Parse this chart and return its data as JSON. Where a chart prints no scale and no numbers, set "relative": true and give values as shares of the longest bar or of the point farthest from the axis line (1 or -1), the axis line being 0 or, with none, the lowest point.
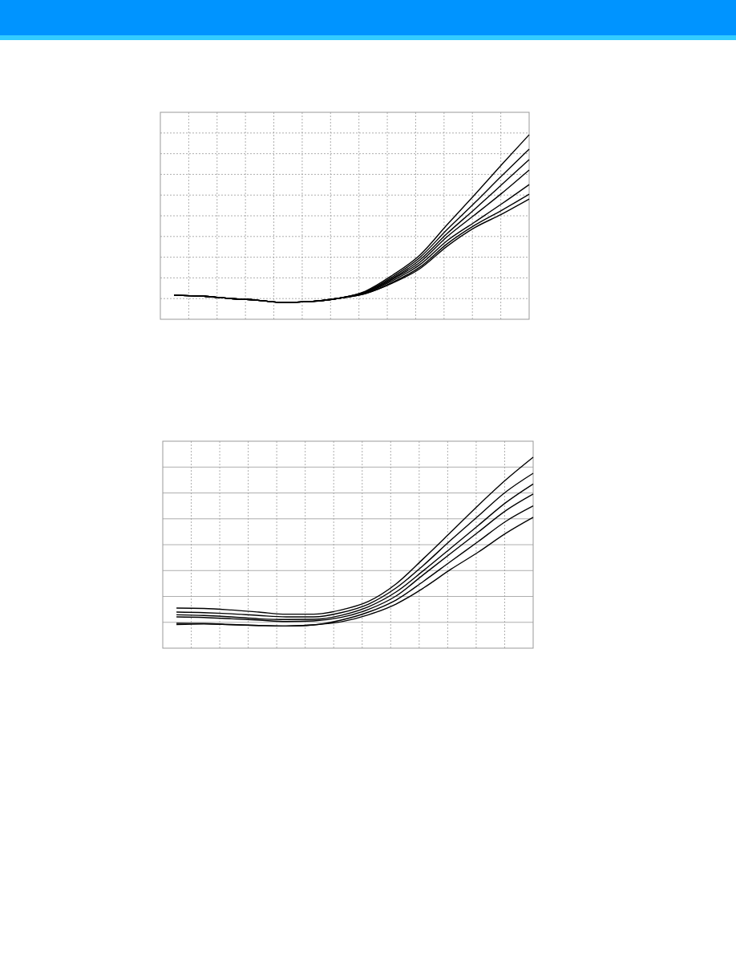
{
  "chart_data": [
    {
      "type": "line",
      "relative": true,
      "grid": true,
      "categories": [
        null,
        null,
        null,
        null,
        null,
        null,
        null,
        null,
        null,
        null,
        null,
        null,
        null,
        null
      ],
      "series": [
        {
          "color": "#000000",
          "values": [
            0.13,
            0.126,
            0.113,
            0.104,
            0.091,
            0.096,
            0.113,
            0.152,
            0.239,
            0.348,
            0.513,
            0.674,
            0.839,
            1.0
          ]
        },
        {
          "color": "#000000",
          "values": [
            0.13,
            0.126,
            0.113,
            0.104,
            0.091,
            0.096,
            0.113,
            0.148,
            0.23,
            0.335,
            0.487,
            0.63,
            0.778,
            0.922
          ]
        },
        {
          "color": "#000000",
          "values": [
            0.13,
            0.126,
            0.113,
            0.104,
            0.091,
            0.096,
            0.113,
            0.148,
            0.222,
            0.322,
            0.465,
            0.596,
            0.73,
            0.865
          ]
        },
        {
          "color": "#000000",
          "values": [
            0.13,
            0.126,
            0.113,
            0.104,
            0.091,
            0.096,
            0.113,
            0.143,
            0.217,
            0.309,
            0.448,
            0.565,
            0.683,
            0.809
          ]
        },
        {
          "color": "#000000",
          "values": [
            0.13,
            0.126,
            0.113,
            0.104,
            0.091,
            0.096,
            0.113,
            0.143,
            0.209,
            0.296,
            0.426,
            0.526,
            0.626,
            0.73
          ]
        },
        {
          "color": "#000000",
          "values": [
            0.13,
            0.126,
            0.113,
            0.104,
            0.091,
            0.096,
            0.113,
            0.139,
            0.2,
            0.283,
            0.409,
            0.509,
            0.591,
            0.678
          ]
        },
        {
          "color": "#000000",
          "values": [
            0.13,
            0.126,
            0.113,
            0.104,
            0.091,
            0.096,
            0.113,
            0.139,
            0.196,
            0.274,
            0.396,
            0.496,
            0.57,
            0.652
          ]
        }
      ]
    },
    {
      "type": "line",
      "relative": true,
      "grid": true,
      "categories": [
        null,
        null,
        null,
        null,
        null,
        null,
        null,
        null,
        null,
        null,
        null,
        null,
        null,
        null
      ],
      "series": [
        {
          "color": "#000000",
          "values": [
            0.21,
            0.208,
            0.2,
            0.189,
            0.178,
            0.178,
            0.2,
            0.245,
            0.336,
            0.469,
            0.608,
            0.748,
            0.881,
            1.0
          ]
        },
        {
          "color": "#000000",
          "values": [
            0.189,
            0.186,
            0.18,
            0.171,
            0.164,
            0.164,
            0.186,
            0.231,
            0.315,
            0.434,
            0.566,
            0.692,
            0.818,
            0.916
          ]
        },
        {
          "color": "#000000",
          "values": [
            0.175,
            0.171,
            0.164,
            0.154,
            0.15,
            0.151,
            0.172,
            0.217,
            0.294,
            0.406,
            0.524,
            0.643,
            0.762,
            0.86
          ]
        },
        {
          "color": "#000000",
          "values": [
            0.164,
            0.161,
            0.154,
            0.147,
            0.14,
            0.143,
            0.161,
            0.203,
            0.273,
            0.385,
            0.497,
            0.608,
            0.72,
            0.807
          ]
        },
        {
          "color": "#000000",
          "values": [
            0.13,
            0.129,
            0.124,
            0.119,
            0.116,
            0.122,
            0.147,
            0.189,
            0.252,
            0.35,
            0.455,
            0.559,
            0.664,
            0.745
          ]
        },
        {
          "color": "#000000",
          "values": [
            0.124,
            0.127,
            0.123,
            0.119,
            0.116,
            0.122,
            0.138,
            0.175,
            0.231,
            0.315,
            0.413,
            0.503,
            0.601,
            0.685
          ]
        }
      ]
    }
  ]
}
